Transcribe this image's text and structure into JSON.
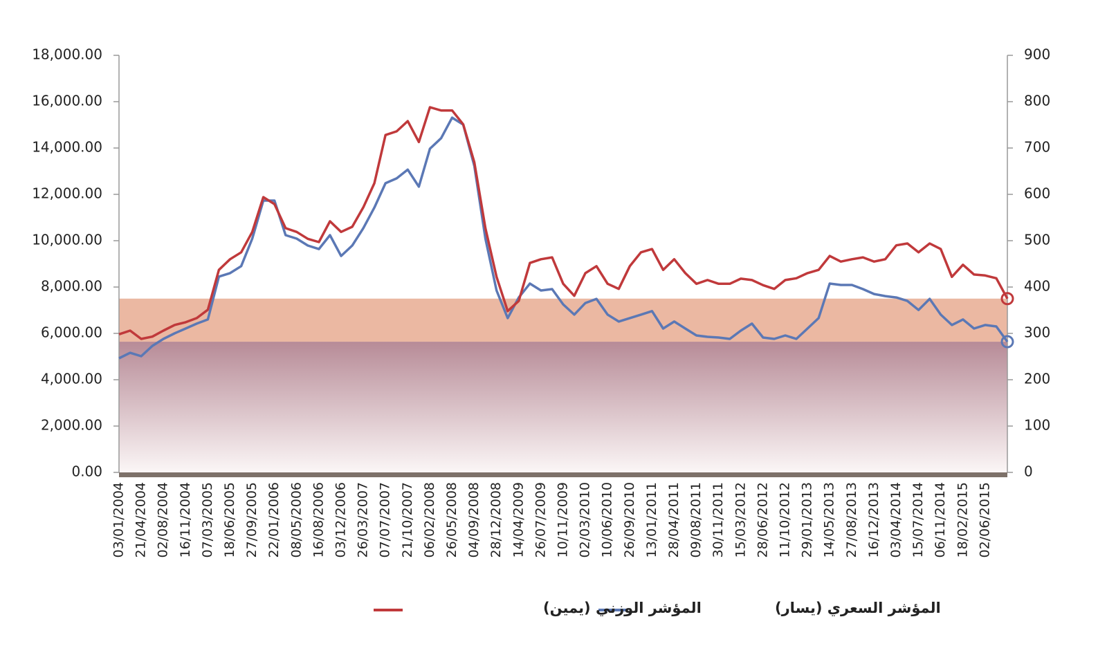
{
  "chart_data": {
    "type": "line",
    "categories": [
      "03/01/2004",
      null,
      "21/04/2004",
      null,
      "02/08/2004",
      null,
      "16/11/2004",
      null,
      "07/03/2005",
      null,
      "18/06/2005",
      null,
      "27/09/2005",
      null,
      "22/01/2006",
      null,
      "08/05/2006",
      null,
      "16/08/2006",
      null,
      "03/12/2006",
      null,
      "26/03/2007",
      null,
      "07/07/2007",
      null,
      "21/10/2007",
      null,
      "06/02/2008",
      null,
      "26/05/2008",
      null,
      "04/09/2008",
      null,
      "28/12/2008",
      null,
      "14/04/2009",
      null,
      "26/07/2009",
      null,
      "10/11/2009",
      null,
      "02/03/2010",
      null,
      "10/06/2010",
      null,
      "26/09/2010",
      null,
      "13/01/2011",
      null,
      "28/04/2011",
      null,
      "09/08/2011",
      null,
      "30/11/2011",
      null,
      "15/03/2012",
      null,
      "28/06/2012",
      null,
      "11/10/2012",
      null,
      "29/01/2013",
      null,
      "14/05/2013",
      null,
      "27/08/2013",
      null,
      "16/12/2013",
      null,
      "03/04/2014",
      null,
      "15/07/2014",
      null,
      "06/11/2014",
      null,
      "18/02/2015",
      null,
      "02/06/2015",
      null,
      null
    ],
    "series": [
      {
        "name": "المؤشر السعري (يسار)",
        "color": "#5b78b5",
        "axis": "y",
        "values": [
          4925,
          5160,
          5015,
          5460,
          5760,
          6000,
          6210,
          6420,
          6600,
          8450,
          8600,
          8900,
          10090,
          11730,
          11730,
          10240,
          10090,
          9790,
          9640,
          10240,
          9340,
          9790,
          10540,
          11430,
          12480,
          12690,
          13070,
          12330,
          13970,
          14420,
          15310,
          15010,
          13220,
          10090,
          7850,
          6660,
          7550,
          8150,
          7850,
          7910,
          7250,
          6810,
          7310,
          7490,
          6810,
          6510,
          6660,
          6810,
          6960,
          6210,
          6510,
          6210,
          5910,
          5850,
          5820,
          5760,
          6120,
          6420,
          5820,
          5760,
          5910,
          5760,
          6210,
          6660,
          8150,
          8090,
          8090,
          7910,
          7700,
          7610,
          7550,
          7400,
          7010,
          7490,
          6810,
          6360,
          6600,
          6210,
          6360,
          6300,
          5640
        ]
      },
      {
        "name": "المؤشر الوزني (يمين)",
        "color": "#c0393b",
        "axis": "y2",
        "values": [
          298,
          306,
          288,
          293,
          306,
          318,
          324,
          333,
          351,
          437,
          460,
          475,
          519,
          594,
          579,
          527,
          519,
          504,
          497,
          542,
          519,
          530,
          572,
          624,
          728,
          736,
          758,
          713,
          788,
          781,
          781,
          751,
          669,
          527,
          422,
          348,
          370,
          452,
          460,
          464,
          407,
          381,
          430,
          445,
          407,
          396,
          445,
          475,
          482,
          437,
          460,
          430,
          407,
          415,
          407,
          407,
          418,
          415,
          404,
          396,
          415,
          419,
          430,
          437,
          467,
          455,
          460,
          464,
          455,
          460,
          490,
          494,
          475,
          494,
          482,
          422,
          448,
          427,
          425,
          419,
          375
        ]
      }
    ],
    "ylim": [
      0,
      18000
    ],
    "yticks": [
      {
        "value": 0,
        "label": "0.00"
      },
      {
        "value": 2000,
        "label": "2,000.00"
      },
      {
        "value": 4000,
        "label": "4,000.00"
      },
      {
        "value": 6000,
        "label": "6,000.00"
      },
      {
        "value": 8000,
        "label": "8,000.00"
      },
      {
        "value": 10000,
        "label": "10,000.00"
      },
      {
        "value": 12000,
        "label": "12,000.00"
      },
      {
        "value": 14000,
        "label": "14,000.00"
      },
      {
        "value": 16000,
        "label": "16,000.00"
      },
      {
        "value": 18000,
        "label": "18,000.00"
      }
    ],
    "y2lim": [
      0,
      900
    ],
    "y2ticks": [
      0,
      100,
      200,
      300,
      400,
      500,
      600,
      700,
      800,
      900
    ]
  }
}
